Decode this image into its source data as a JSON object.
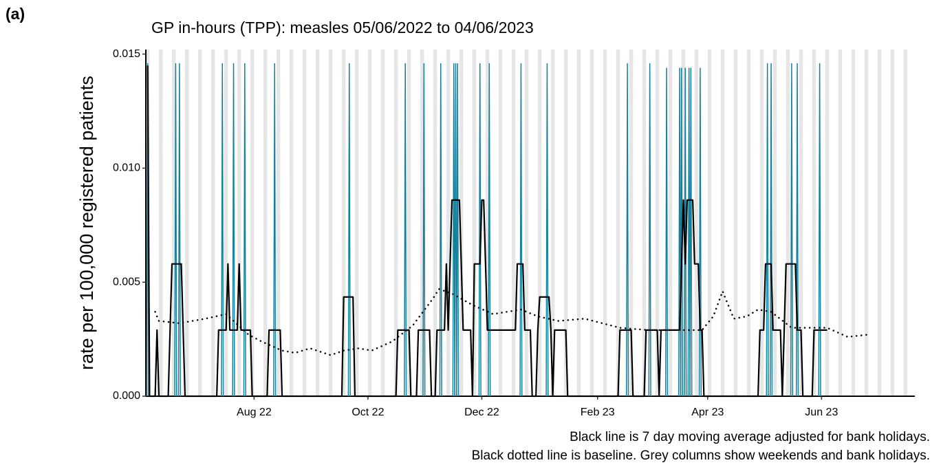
{
  "panel_label": "(a)",
  "chart_data": {
    "type": "line",
    "title": "GP in-hours (TPP): measles 05/06/2022 to 04/06/2023",
    "y_label": "rate per 100,000 registered patients",
    "caption": [
      "Black line is 7 day moving average adjusted for bank holidays.",
      "Black dotted line is baseline. Grey columns show weekends and bank holidays."
    ],
    "xlim": [
      "2022-06-04",
      "2023-07-21"
    ],
    "xticks": [
      {
        "value": "2022-08-01",
        "label": "Aug 22"
      },
      {
        "value": "2022-10-01",
        "label": "Oct 22"
      },
      {
        "value": "2022-12-01",
        "label": "Dec 22"
      },
      {
        "value": "2023-02-01",
        "label": "Feb 23"
      },
      {
        "value": "2023-04-01",
        "label": "Apr 23"
      },
      {
        "value": "2023-06-01",
        "label": "Jun 23"
      }
    ],
    "ylim": [
      0,
      0.0152
    ],
    "yticks": [
      {
        "value": 0,
        "label": "0.000"
      },
      {
        "value": 0.005,
        "label": "0.005"
      },
      {
        "value": 0.01,
        "label": "0.010"
      },
      {
        "value": 0.015,
        "label": "0.015"
      }
    ],
    "weekend_color": "#e6e6e6",
    "series": [
      {
        "color": "#14809c",
        "style": "spike",
        "x": [
          "2022-06-05",
          "2022-06-20",
          "2022-06-22",
          "2022-07-15",
          "2022-07-21",
          "2022-07-27",
          "2022-08-12",
          "2022-09-21",
          "2022-10-21",
          "2022-10-31",
          "2022-11-09",
          "2022-11-16",
          "2022-11-17",
          "2022-11-18",
          "2022-11-30",
          "2022-12-05",
          "2022-12-22",
          "2023-01-05",
          "2023-02-17",
          "2023-03-01",
          "2023-03-10",
          "2023-03-17",
          "2023-03-18",
          "2023-03-20",
          "2023-03-22",
          "2023-03-23",
          "2023-03-28",
          "2023-05-03",
          "2023-05-05",
          "2023-05-16",
          "2023-05-19",
          "2023-05-31"
        ],
        "values": [
          0.0146,
          0.0146,
          0.0146,
          0.0146,
          0.0146,
          0.0146,
          0.0146,
          0.0146,
          0.0146,
          0.0146,
          0.0146,
          0.0146,
          0.0146,
          0.0146,
          0.0146,
          0.0146,
          0.0146,
          0.0146,
          0.0146,
          0.0146,
          0.0144,
          0.0144,
          0.0144,
          0.0144,
          0.0144,
          0.0144,
          0.0144,
          0.0146,
          0.0146,
          0.0146,
          0.0146,
          0.0146
        ]
      },
      {
        "color": "#000000",
        "style": "solid",
        "x": [
          "2022-06-05",
          "2022-06-06",
          "2022-06-09",
          "2022-06-10",
          "2022-06-11",
          "2022-06-16",
          "2022-06-17",
          "2022-06-18",
          "2022-06-23",
          "2022-06-24",
          "2022-06-25",
          "2022-07-12",
          "2022-07-13",
          "2022-07-17",
          "2022-07-18",
          "2022-07-19",
          "2022-07-23",
          "2022-07-24",
          "2022-07-25",
          "2022-07-30",
          "2022-07-31",
          "2022-08-08",
          "2022-08-09",
          "2022-08-15",
          "2022-08-16",
          "2022-09-17",
          "2022-09-18",
          "2022-09-23",
          "2022-09-24",
          "2022-10-16",
          "2022-10-17",
          "2022-10-23",
          "2022-10-24",
          "2022-10-27",
          "2022-10-28",
          "2022-11-03",
          "2022-11-04",
          "2022-11-06",
          "2022-11-07",
          "2022-11-11",
          "2022-11-12",
          "2022-11-13",
          "2022-11-14",
          "2022-11-15",
          "2022-11-19",
          "2022-11-20",
          "2022-11-21",
          "2022-11-25",
          "2022-11-26",
          "2022-11-27",
          "2022-11-30",
          "2022-12-01",
          "2022-12-02",
          "2022-12-03",
          "2022-12-04",
          "2022-12-19",
          "2022-12-20",
          "2022-12-23",
          "2022-12-24",
          "2022-12-27",
          "2022-12-28",
          "2022-12-30",
          "2022-12-31",
          "2023-01-01",
          "2023-01-06",
          "2023-01-07",
          "2023-01-08",
          "2023-01-09",
          "2023-01-15",
          "2023-01-16",
          "2023-02-12",
          "2023-02-13",
          "2023-02-19",
          "2023-02-20",
          "2023-02-26",
          "2023-02-27",
          "2023-03-05",
          "2023-03-06",
          "2023-03-07",
          "2023-03-17",
          "2023-03-18",
          "2023-03-19",
          "2023-03-20",
          "2023-03-21",
          "2023-03-24",
          "2023-03-25",
          "2023-03-27",
          "2023-03-28",
          "2023-03-29",
          "2023-03-30",
          "2023-04-28",
          "2023-04-29",
          "2023-05-01",
          "2023-05-02",
          "2023-05-05",
          "2023-05-06",
          "2023-05-10",
          "2023-05-11",
          "2023-05-12",
          "2023-05-13",
          "2023-05-18",
          "2023-05-19",
          "2023-05-21",
          "2023-05-22",
          "2023-05-27",
          "2023-05-28",
          "2023-06-04"
        ],
        "values": [
          0.0145,
          0,
          0,
          0.0029,
          0,
          0,
          0.0029,
          0.0058,
          0.0058,
          0.0029,
          0,
          0,
          0.0029,
          0.0029,
          0.0058,
          0.0029,
          0.0029,
          0.0058,
          0.0029,
          0.0029,
          0,
          0,
          0.0029,
          0.0029,
          0,
          0,
          0.00435,
          0.00435,
          0,
          0,
          0.0029,
          0.0029,
          0,
          0,
          0.0029,
          0.0029,
          0,
          0,
          0.0029,
          0.0029,
          0.0058,
          0.0029,
          0.0058,
          0.0086,
          0.0086,
          0.0058,
          0.0029,
          0.0029,
          0,
          0.0058,
          0.0058,
          0.0086,
          0.0086,
          0.0058,
          0.0029,
          0.0029,
          0.0058,
          0.0058,
          0.0029,
          0.0029,
          0,
          0,
          0.0029,
          0.00435,
          0.00435,
          0.0029,
          0,
          0.0029,
          0.0029,
          0,
          0,
          0.0029,
          0.0029,
          0,
          0,
          0.0029,
          0.0029,
          0,
          0.0029,
          0.0029,
          0.0058,
          0.0086,
          0.0058,
          0.0086,
          0.0086,
          0.0058,
          0.0058,
          0.0029,
          0.0029,
          0,
          0,
          0.0029,
          0.0029,
          0.0058,
          0.0058,
          0.0029,
          0.0029,
          0,
          0.0029,
          0.0058,
          0.0058,
          0.0029,
          0.0029,
          0,
          0,
          0.0029,
          0.0029
        ]
      },
      {
        "color": "#000000",
        "style": "dotted",
        "x": [
          "2022-06-09",
          "2022-06-11",
          "2022-06-22",
          "2022-07-06",
          "2022-07-17",
          "2022-07-29",
          "2022-08-05",
          "2022-08-16",
          "2022-08-23",
          "2022-08-31",
          "2022-09-11",
          "2022-09-18",
          "2022-09-26",
          "2022-10-03",
          "2022-10-14",
          "2022-10-25",
          "2022-11-05",
          "2022-11-08",
          "2022-11-15",
          "2022-11-26",
          "2022-12-07",
          "2022-12-22",
          "2022-12-31",
          "2023-01-11",
          "2023-01-25",
          "2023-02-13",
          "2023-02-28",
          "2023-03-14",
          "2023-03-29",
          "2023-04-04",
          "2023-04-09",
          "2023-04-15",
          "2023-04-22",
          "2023-04-28",
          "2023-05-05",
          "2023-05-16",
          "2023-05-27",
          "2023-06-04",
          "2023-06-15",
          "2023-06-26"
        ],
        "values": [
          0.0037,
          0.0033,
          0.0032,
          0.0034,
          0.0036,
          0.0027,
          0.0024,
          0.002,
          0.0019,
          0.0021,
          0.0018,
          0.002,
          0.0021,
          0.002,
          0.0024,
          0.0031,
          0.0043,
          0.0047,
          0.0045,
          0.004,
          0.0036,
          0.0038,
          0.0035,
          0.0033,
          0.0034,
          0.003,
          0.0029,
          0.0029,
          0.0029,
          0.0035,
          0.0046,
          0.0034,
          0.0035,
          0.0038,
          0.0037,
          0.003,
          0.003,
          0.003,
          0.0026,
          0.0027
        ]
      }
    ]
  }
}
